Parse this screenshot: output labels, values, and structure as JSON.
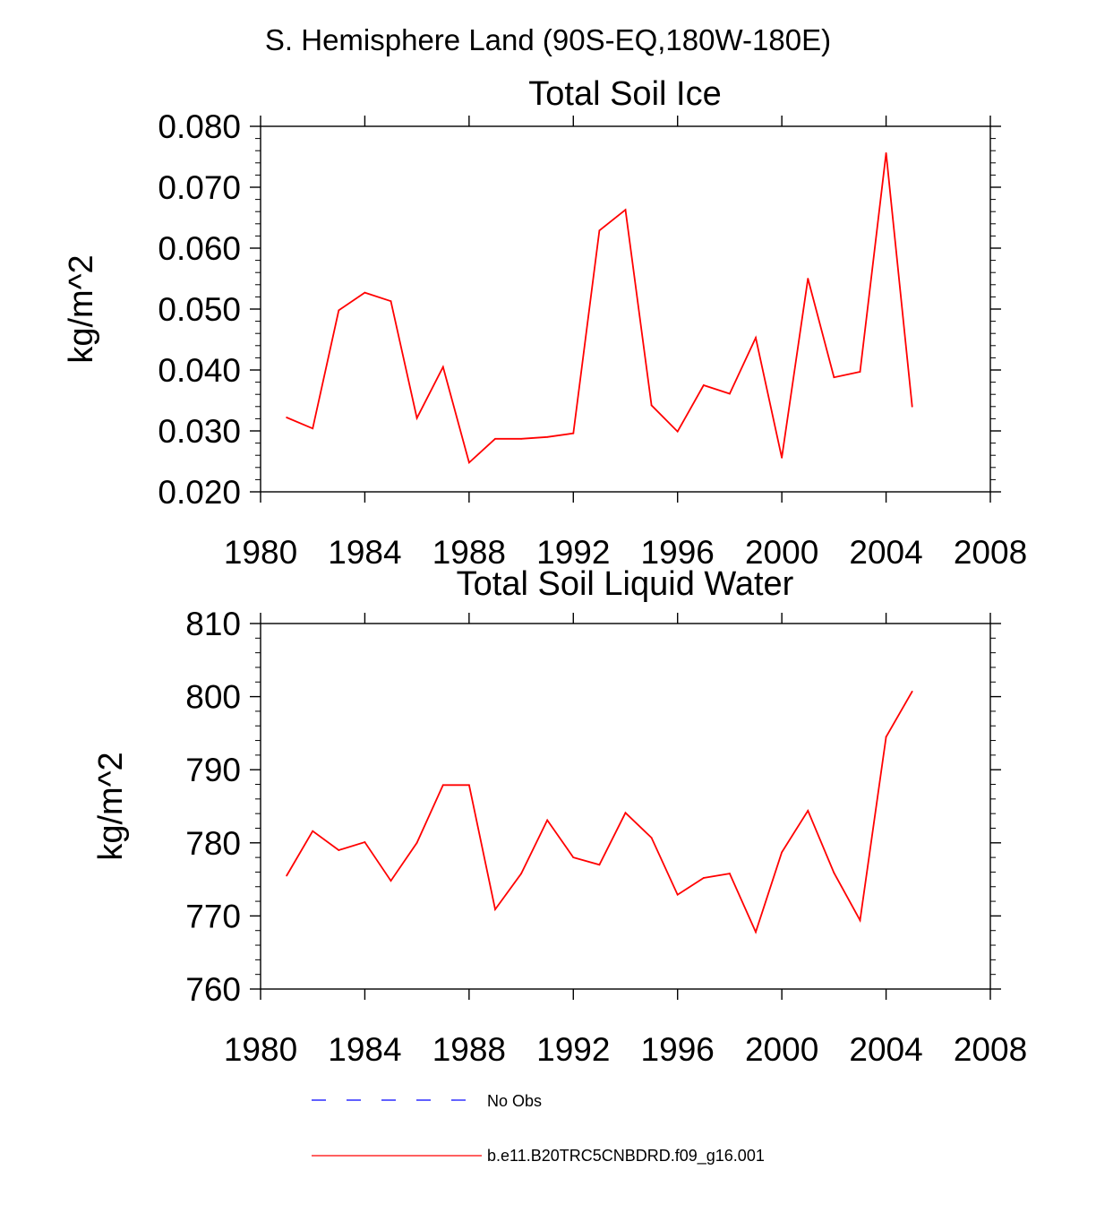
{
  "figure_title": "S. Hemisphere Land (90S-EQ,180W-180E)",
  "chart_data": [
    {
      "type": "line",
      "title": "Total Soil Ice",
      "xlabel": "",
      "ylabel": "kg/m^2",
      "xlim": [
        1980,
        2008
      ],
      "ylim": [
        0.02,
        0.08
      ],
      "xticks": [
        1980,
        1984,
        1988,
        1992,
        1996,
        2000,
        2004,
        2008
      ],
      "xtick_labels": [
        "1980",
        "1984",
        "1988",
        "1992",
        "1996",
        "2000",
        "2004",
        "2008"
      ],
      "yticks": [
        0.02,
        0.03,
        0.04,
        0.05,
        0.06,
        0.07,
        0.08
      ],
      "ytick_labels": [
        "0.020",
        "0.030",
        "0.040",
        "0.050",
        "0.060",
        "0.070",
        "0.080"
      ],
      "x": [
        1981,
        1982,
        1983,
        1984,
        1985,
        1986,
        1987,
        1988,
        1989,
        1990,
        1991,
        1992,
        1993,
        1994,
        1995,
        1996,
        1997,
        1998,
        1999,
        2000,
        2001,
        2002,
        2003,
        2004,
        2005
      ],
      "series": [
        {
          "name": "b.e11.B20TRC5CNBDRD.f09_g16.001",
          "color": "#ff0000",
          "values": [
            0.0322,
            0.0304,
            0.0498,
            0.0527,
            0.0513,
            0.0321,
            0.0405,
            0.0248,
            0.0287,
            0.0287,
            0.029,
            0.0296,
            0.0629,
            0.0663,
            0.0342,
            0.0299,
            0.0375,
            0.0361,
            0.0453,
            0.0256,
            0.055,
            0.0388,
            0.0397,
            0.0756,
            0.034
          ]
        }
      ]
    },
    {
      "type": "line",
      "title": "Total Soil Liquid Water",
      "xlabel": "",
      "ylabel": "kg/m^2",
      "xlim": [
        1980,
        2008
      ],
      "ylim": [
        760,
        810
      ],
      "xticks": [
        1980,
        1984,
        1988,
        1992,
        1996,
        2000,
        2004,
        2008
      ],
      "xtick_labels": [
        "1980",
        "1984",
        "1988",
        "1992",
        "1996",
        "2000",
        "2004",
        "2008"
      ],
      "yticks": [
        760,
        770,
        780,
        790,
        800,
        810
      ],
      "ytick_labels": [
        "760",
        "770",
        "780",
        "790",
        "800",
        "810"
      ],
      "x": [
        1981,
        1982,
        1983,
        1984,
        1985,
        1986,
        1987,
        1988,
        1989,
        1990,
        1991,
        1992,
        1993,
        1994,
        1995,
        1996,
        1997,
        1998,
        1999,
        2000,
        2001,
        2002,
        2003,
        2004,
        2005
      ],
      "series": [
        {
          "name": "b.e11.B20TRC5CNBDRD.f09_g16.001",
          "color": "#ff0000",
          "values": [
            775.5,
            781.6,
            779.0,
            780.1,
            774.8,
            780.0,
            787.9,
            787.9,
            770.9,
            775.8,
            783.1,
            778.0,
            777.0,
            784.1,
            780.7,
            772.9,
            775.2,
            775.8,
            767.8,
            778.7,
            784.4,
            775.9,
            769.4,
            794.5,
            800.7
          ]
        }
      ]
    }
  ],
  "legend": [
    {
      "label": "No Obs",
      "color": "#0000ff",
      "style": "dashed"
    },
    {
      "label": "b.e11.B20TRC5CNBDRD.f09_g16.001",
      "color": "#ff0000",
      "style": "solid"
    }
  ]
}
